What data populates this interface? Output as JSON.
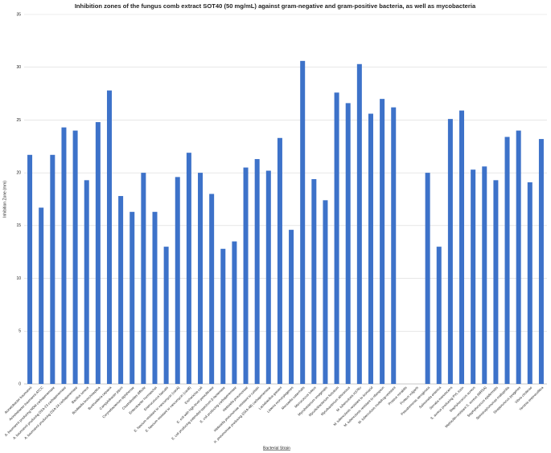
{
  "chart_data": {
    "type": "bar",
    "title": "Inhibition zones of the fungus comb extract SOT40 (50 mg/mL) against gram-negative and gram-positive bacteria, as well as mycobacteria",
    "x_label": "Bacterial Strain",
    "y_label": "Inhibition Zone (mm)",
    "categories": [
      "Acinetobacter baumannii",
      "Acinetobacter baumannii ATCC",
      "A. baumannii producing NDM carbapenemase",
      "A. baumannii producing OXA-23 carbapenemase",
      "A. baumannii producing OXA-24 carbapenemase",
      "Bacillus cereus",
      "Bordetella bronchiseptica",
      "Burkholderia cepacia",
      "Campylobacter jejuni",
      "Corynebacterium diphtheriae",
      "Clostridioides difficile",
      "Enterobacter hormaechei",
      "Enterococcus faecalis",
      "E. faecium resistant to vancomycin (vanA)",
      "E. faecium resistant to vancomycin (vanB)",
      "Escherichia coli",
      "E. coli with high-level penicillinase",
      "E. coli producing extended-spectrum β-lactamase",
      "E. coli producing carbapenemase",
      "Klebsiella pneumoniae",
      "Klebsiella pneumoniae resistant to colistin",
      "K. pneumoniae producing (OXA-48) carbapenemase",
      "Lactobacillus gasseri",
      "Listeria monocytogenes",
      "Moraxella catarrhalis",
      "Micrococcus luteus",
      "Mycobacterium smegmatis",
      "Mycolicibacterium fortuitum",
      "Mycobacterium abscessus",
      "M. tuberculosis H37Rv",
      "M. tuberculosis resistant to isoniazid",
      "M. tuberculosis resistant to rifampicin",
      "M. tuberculosis multidrug-resistant",
      "Proteus mirabilis",
      "Proteus vulgaris",
      "Pseudomonas aeruginosa",
      "Salmonella enterica",
      "Serratia marcescens",
      "S. aureus producing PVL toxin",
      "Staphylococcus aureus",
      "Methicillin-resistant S. aureus (MRSA)",
      "Staphylococcus epidermidis",
      "Stenotrophomonas maltophilia",
      "Streptococcus pyogenes",
      "Vibrio cholerae",
      "Yersinia enterocolitica"
    ],
    "values": [
      21.7,
      16.7,
      21.7,
      24.3,
      24.0,
      19.3,
      24.8,
      27.8,
      17.8,
      16.3,
      20.0,
      16.3,
      13.0,
      19.6,
      21.9,
      20.0,
      18.0,
      12.8,
      13.5,
      20.5,
      21.3,
      20.2,
      23.3,
      14.6,
      30.6,
      19.4,
      17.4,
      27.6,
      26.6,
      30.3,
      25.6,
      27.0,
      26.2,
      0,
      0,
      20.0,
      13.0,
      25.1,
      25.9,
      20.3,
      20.6,
      19.3,
      23.4,
      24.0,
      19.1,
      23.2
    ],
    "color": "#3d72c9",
    "ylim": [
      0,
      35
    ],
    "yticks": [
      0,
      5,
      10,
      15,
      20,
      25,
      30,
      35
    ],
    "grid": true
  }
}
